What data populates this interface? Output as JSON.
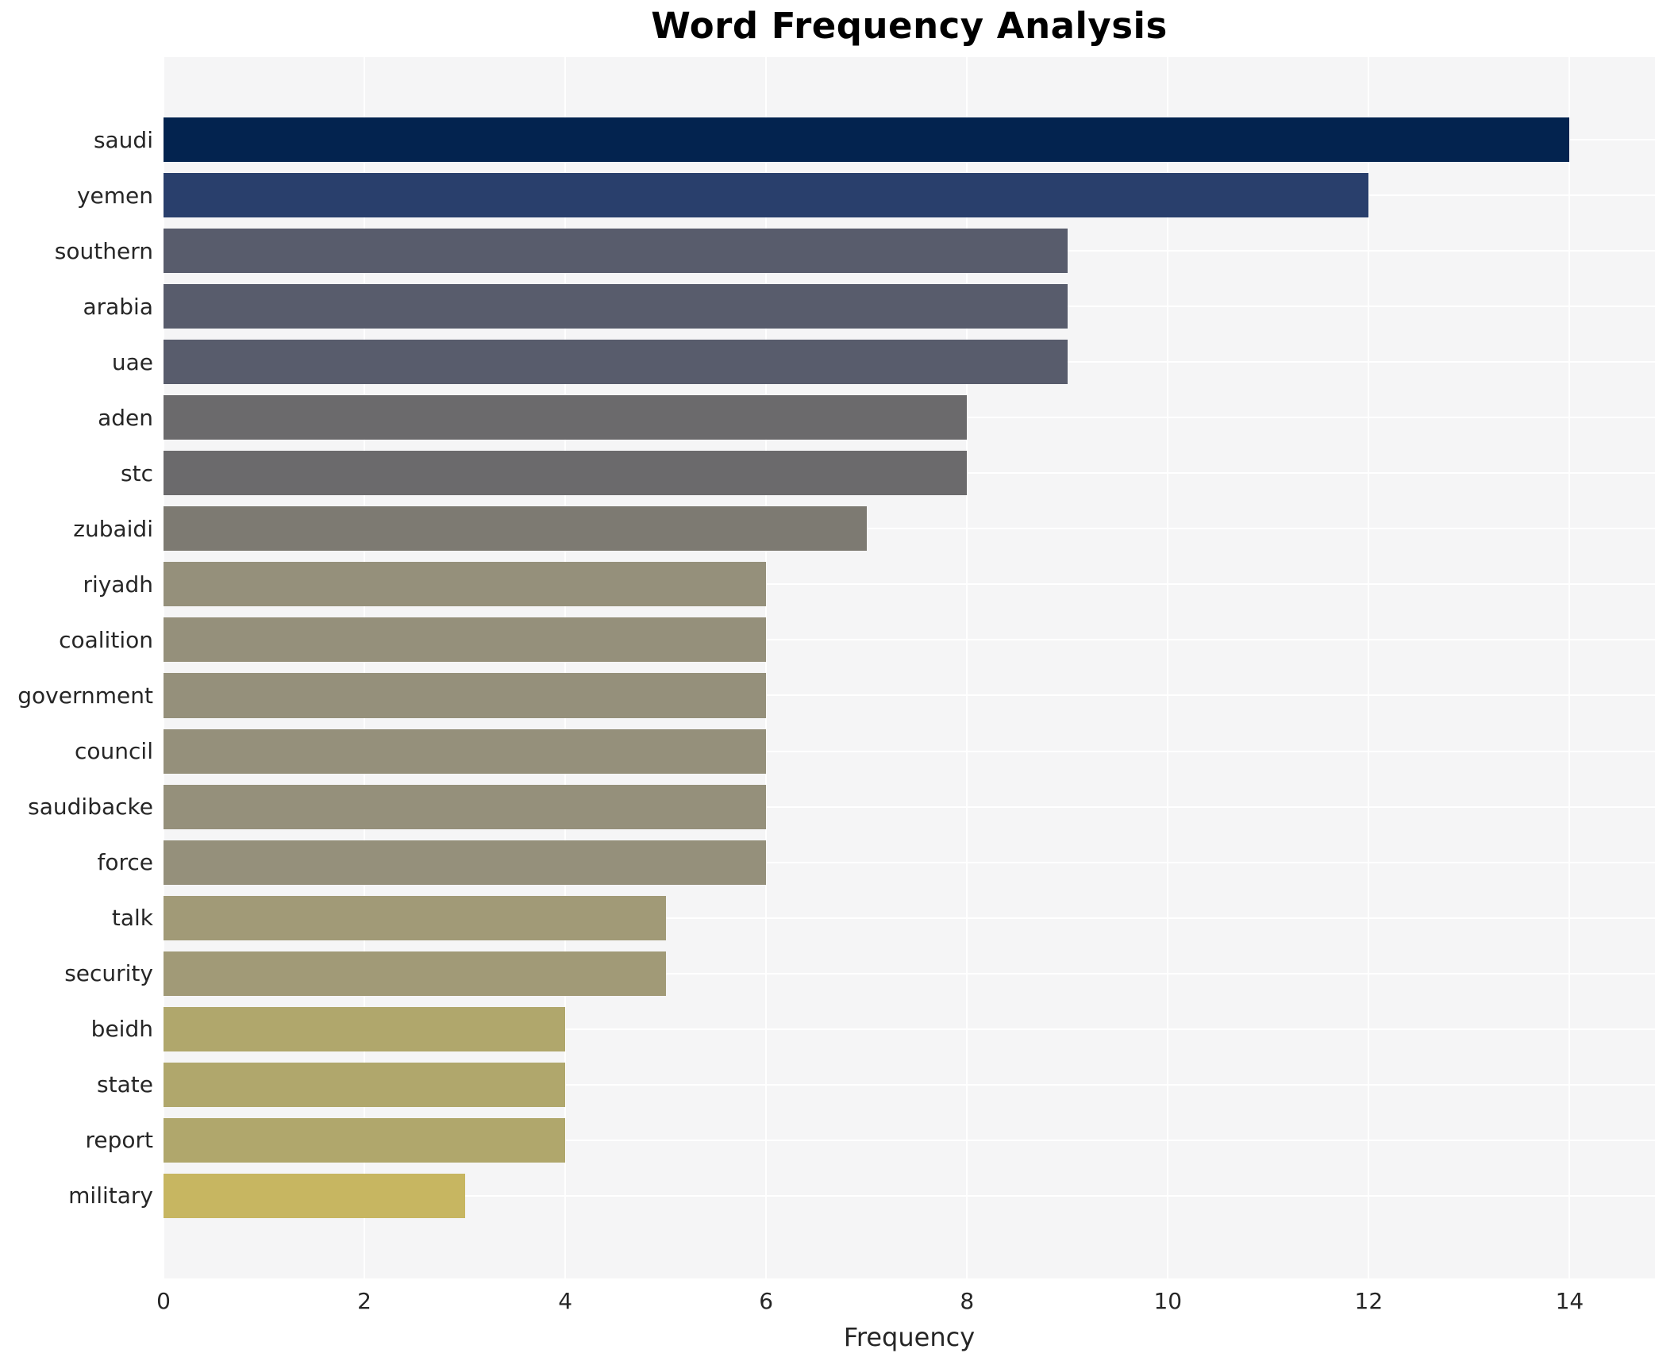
{
  "title": "Word Frequency Analysis",
  "chart_data": {
    "type": "bar",
    "orientation": "horizontal",
    "title": "Word Frequency Analysis",
    "xlabel": "Frequency",
    "ylabel": "",
    "categories": [
      "saudi",
      "yemen",
      "southern",
      "arabia",
      "uae",
      "aden",
      "stc",
      "zubaidi",
      "riyadh",
      "coalition",
      "government",
      "council",
      "saudibacke",
      "force",
      "talk",
      "security",
      "beidh",
      "state",
      "report",
      "military"
    ],
    "values": [
      14,
      12,
      9,
      9,
      9,
      8,
      8,
      7,
      6,
      6,
      6,
      6,
      6,
      6,
      5,
      5,
      4,
      4,
      4,
      3
    ],
    "bar_colors": [
      "#03234f",
      "#293f6c",
      "#585c6c",
      "#585c6c",
      "#585c6c",
      "#6b6a6c",
      "#6b6a6c",
      "#7d7a72",
      "#95907b",
      "#95907b",
      "#95907b",
      "#95907b",
      "#95907b",
      "#95907b",
      "#a19a77",
      "#a19a77",
      "#b0a76c",
      "#b0a76c",
      "#b0a76c",
      "#c7b661"
    ],
    "xticks": [
      0,
      2,
      4,
      6,
      8,
      10,
      12,
      14
    ],
    "xlim": [
      0,
      14.85
    ],
    "grid": true,
    "legend_position": "none",
    "colors": {
      "plot_background": "#f5f5f6",
      "gridline": "#ffffff",
      "figure_background": "#ffffff",
      "text": "#262626",
      "title_text": "#000000"
    }
  }
}
